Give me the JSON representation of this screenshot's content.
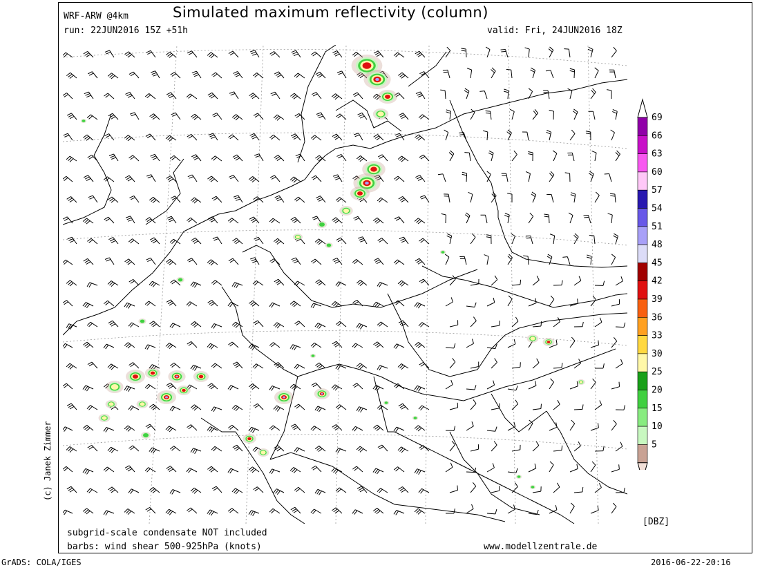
{
  "header": {
    "model": "WRF-ARW @4km",
    "title": "Simulated maximum reflectivity (column)",
    "run": "run: 22JUN2016 15Z +51h",
    "valid": "valid: Fri, 24JUN2016 18Z"
  },
  "footer": {
    "subgrid_note": "subgrid-scale condensate NOT included",
    "barbs_note": "barbs: wind shear 500-925hPa (knots)",
    "website": "www.modellzentrale.de",
    "software": "GrADS: COLA/IGES",
    "timestamp": "2016-06-22-20:16"
  },
  "copyright": "(c) Janek Zimmer",
  "legend": {
    "unit": "[DBZ]",
    "levels": [
      "5",
      "10",
      "15",
      "20",
      "25",
      "30",
      "33",
      "36",
      "39",
      "42",
      "45",
      "48",
      "51",
      "54",
      "57",
      "60",
      "63",
      "66",
      "69"
    ],
    "colors": [
      "#f2e0d8",
      "#c9a294",
      "#c8f8c0",
      "#88ec80",
      "#40d040",
      "#18a018",
      "#fff8a8",
      "#ffd840",
      "#ffa020",
      "#f86010",
      "#e01010",
      "#a00000",
      "#dcdcf8",
      "#a8a0f8",
      "#6858e8",
      "#2818b0",
      "#ffc8f8",
      "#f858f0",
      "#c810c8",
      "#9000a8"
    ]
  },
  "map": {
    "storm_colors": {
      "light": "#c8f8c0",
      "green": "#40d040",
      "yellow": "#fff8a8",
      "red": "#e01010",
      "purple": "#a8a0f8",
      "pink": "#f858f0",
      "drizzle": "#c9a294"
    }
  }
}
